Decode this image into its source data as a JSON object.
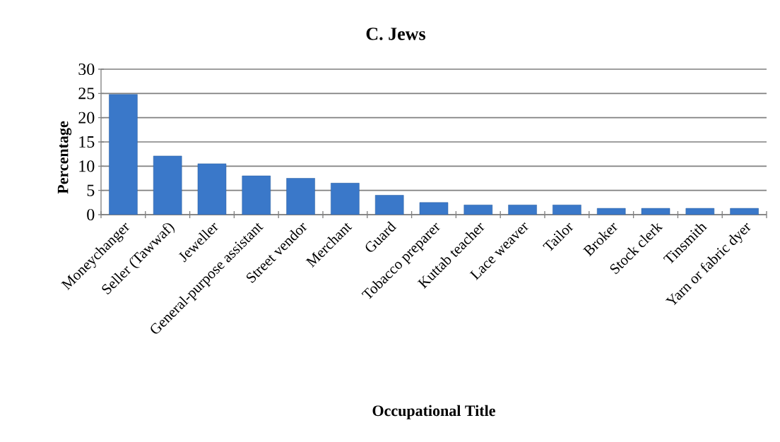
{
  "chart_data": {
    "type": "bar",
    "title": "C. Jews",
    "xlabel": "Occupational Title",
    "ylabel": "Percentage",
    "categories": [
      "Moneychanger",
      "Seller (Tawwaf)",
      "Jeweller",
      "General-purpose assistant",
      "Street vendor",
      "Merchant",
      "Guard",
      "Tobacco preparer",
      "Kuttab teacher",
      "Lace weaver",
      "Tailor",
      "Broker",
      "Stock clerk",
      "Tinsmith",
      "Yarn or fabric dyer"
    ],
    "values": [
      24.8,
      12.1,
      10.5,
      8.0,
      7.5,
      6.5,
      4.0,
      2.5,
      2.0,
      2.0,
      2.0,
      1.3,
      1.3,
      1.3,
      1.3
    ],
    "color": "#3a78c9",
    "ylim": [
      0,
      30
    ],
    "yticks": [
      0,
      5,
      10,
      15,
      20,
      25,
      30
    ],
    "grid": "y"
  }
}
